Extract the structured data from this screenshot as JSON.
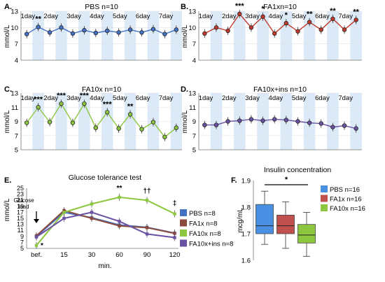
{
  "colors": {
    "pbs": "#4472c4",
    "fa1x": "#c0392b",
    "fa10x": "#8dc63f",
    "fa10x_ins": "#6a52a3",
    "day_band": "#dce9f6",
    "axis": "#777777"
  },
  "chart_data": [
    {
      "panel": "A.",
      "type": "line",
      "title": "PBS n=10",
      "ylabel": "mmol/L",
      "ylim": [
        4,
        13
      ],
      "yticks": [
        4,
        7,
        10,
        13
      ],
      "days": [
        "1day",
        "2day",
        "3day",
        "4day",
        "5day",
        "6day",
        "7day"
      ],
      "x": [
        1,
        2,
        3,
        4,
        5,
        6,
        7,
        8,
        9,
        10,
        11,
        12,
        13,
        14
      ],
      "values": [
        8.8,
        10.1,
        9.1,
        10.0,
        8.9,
        9.5,
        9.0,
        9.4,
        9.1,
        9.6,
        9.1,
        9.7,
        8.8,
        9.6
      ],
      "annotations": [
        {
          "x": 2,
          "text": "**"
        }
      ]
    },
    {
      "panel": "B.",
      "type": "line",
      "title": "FA1xn=10",
      "ylabel": "mmol/L",
      "ylim": [
        4,
        13
      ],
      "yticks": [
        4,
        7,
        10,
        13
      ],
      "days": [
        "1day",
        "2day",
        "3day",
        "4day",
        "5day",
        "6day",
        "7day"
      ],
      "x": [
        1,
        2,
        3,
        4,
        5,
        6,
        7,
        8,
        9,
        10,
        11,
        12,
        13,
        14
      ],
      "values": [
        8.9,
        10.0,
        9.4,
        12.5,
        10.0,
        12.0,
        8.9,
        10.8,
        9.3,
        11.0,
        9.6,
        11.6,
        9.6,
        11.4
      ],
      "annotations": [
        {
          "x": 4,
          "text": "***"
        },
        {
          "x": 6,
          "text": "*"
        },
        {
          "x": 8,
          "text": "*"
        },
        {
          "x": 10,
          "text": "**"
        },
        {
          "x": 12,
          "text": "**"
        },
        {
          "x": 14,
          "text": "**"
        }
      ]
    },
    {
      "panel": "C.",
      "type": "line",
      "title": "FA10x n=10",
      "ylabel": "mmol/L",
      "ylim": [
        5,
        13
      ],
      "yticks": [
        5,
        7,
        9,
        11,
        13
      ],
      "days": [
        "1day",
        "2day",
        "3day",
        "4day",
        "5day",
        "6day",
        "7day"
      ],
      "x": [
        1,
        2,
        3,
        4,
        5,
        6,
        7,
        8,
        9,
        10,
        11,
        12,
        13,
        14
      ],
      "values": [
        8.8,
        11.0,
        8.9,
        11.5,
        8.8,
        11.5,
        8.1,
        10.3,
        8.0,
        10.0,
        7.9,
        8.9,
        6.8,
        8.1
      ],
      "annotations": [
        {
          "x": 2,
          "text": "***"
        },
        {
          "x": 4,
          "text": "***"
        },
        {
          "x": 6,
          "text": "***"
        },
        {
          "x": 8,
          "text": "***"
        },
        {
          "x": 10,
          "text": "**"
        }
      ]
    },
    {
      "panel": "D.",
      "type": "line",
      "title": "FA10x+ins n=10",
      "ylabel": "mmol/L",
      "ylim": [
        5,
        13
      ],
      "yticks": [
        5,
        7,
        9,
        11,
        13
      ],
      "days": [
        "1day",
        "2day",
        "3day",
        "4day",
        "5day",
        "6day",
        "7day"
      ],
      "x": [
        1,
        2,
        3,
        4,
        5,
        6,
        7,
        8,
        9,
        10,
        11,
        12,
        13,
        14
      ],
      "values": [
        8.5,
        8.5,
        9.0,
        9.1,
        9.3,
        9.1,
        9.3,
        9.2,
        9.0,
        8.8,
        8.7,
        8.2,
        8.4,
        8.0
      ],
      "annotations": []
    },
    {
      "panel": "E.",
      "type": "line",
      "title": "Glucose tolerance test",
      "xlabel": "min.",
      "ylabel": "mmol/L",
      "categories": [
        "bef.",
        "15",
        "30",
        "60",
        "90",
        "120"
      ],
      "ylim": [
        5,
        25
      ],
      "yticks": [
        5,
        7,
        9,
        11,
        13,
        15,
        17,
        19,
        21,
        23,
        25
      ],
      "series": [
        {
          "name": "PBS n=8",
          "color": "#4472c4",
          "values": [
            9.0,
            17.0,
            15.2,
            12.8,
            12.0,
            10.1
          ]
        },
        {
          "name": "FA1x n=8",
          "color": "#8b4a3c",
          "values": [
            9.2,
            17.6,
            15.0,
            12.5,
            11.9,
            10.0
          ]
        },
        {
          "name": "FA10x n=8",
          "color": "#8dc63f",
          "values": [
            6.0,
            17.0,
            19.8,
            22.0,
            21.0,
            16.5
          ]
        },
        {
          "name": "FA10x+ins n=8",
          "color": "#6a52a3",
          "values": [
            8.8,
            15.0,
            17.0,
            14.0,
            9.8,
            8.6
          ]
        }
      ],
      "annotations": [
        {
          "x": "bef.",
          "text": "*"
        },
        {
          "x": "60",
          "text": "**"
        },
        {
          "x": "90",
          "text": "††"
        },
        {
          "x": "120",
          "text": "‡"
        }
      ],
      "glucose_load_label": [
        "Glucose",
        "load"
      ]
    },
    {
      "panel": "F.",
      "type": "box",
      "title": "Insulin concentration",
      "ylabel": "mcg/mL",
      "ylim": [
        1.6,
        1.9
      ],
      "yticks": [
        1.6,
        1.7,
        1.8,
        1.9
      ],
      "significance": "*",
      "series": [
        {
          "name": "PBS n=16",
          "color": "#4a90e2",
          "min": 1.66,
          "q1": 1.7,
          "median": 1.73,
          "q3": 1.81,
          "max": 1.86
        },
        {
          "name": "FA1x n=16",
          "color": "#c0504d",
          "min": 1.645,
          "q1": 1.7,
          "median": 1.73,
          "q3": 1.77,
          "max": 1.82
        },
        {
          "name": "FA10x n=16",
          "color": "#8dc63f",
          "min": 1.615,
          "q1": 1.665,
          "median": 1.695,
          "q3": 1.735,
          "max": 1.78
        }
      ]
    }
  ]
}
